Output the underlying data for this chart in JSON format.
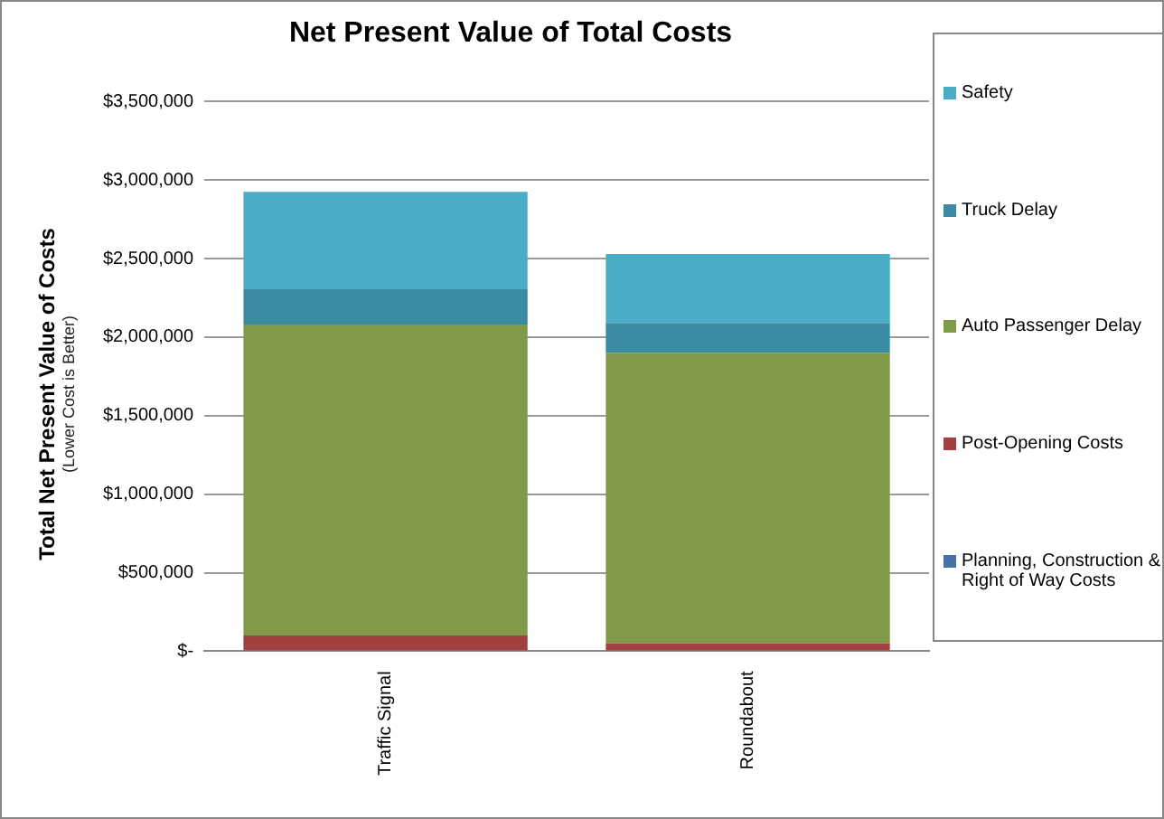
{
  "chart_data": {
    "type": "bar",
    "title": "Net Present Value of Total Costs",
    "ylabel": "Total Net Present Value of Costs",
    "annotations": [
      "(Lower Cost is Better)"
    ],
    "categories": [
      "Traffic Signal",
      "Roundabout"
    ],
    "stacked": true,
    "legend": "right",
    "grid": "y",
    "ylim": [
      0,
      3500000
    ],
    "yticks": [
      {
        "value": 0,
        "label": "$-"
      },
      {
        "value": 500000,
        "label": "$500,000"
      },
      {
        "value": 1000000,
        "label": "$1,000,000"
      },
      {
        "value": 1500000,
        "label": "$1,500,000"
      },
      {
        "value": 2000000,
        "label": "$2,000,000"
      },
      {
        "value": 2500000,
        "label": "$2,500,000"
      },
      {
        "value": 3000000,
        "label": "$3,000,000"
      },
      {
        "value": 3500000,
        "label": "$3,500,000"
      }
    ],
    "series": [
      {
        "name": "Planning, Construction & Right of Way Costs",
        "color": "#4672a8",
        "values": [
          0,
          0
        ]
      },
      {
        "name": "Post-Opening Costs",
        "color": "#a04040",
        "values": [
          100000,
          50000
        ]
      },
      {
        "name": "Auto Passenger Delay",
        "color": "#7f9a48",
        "values": [
          1980000,
          1850000
        ]
      },
      {
        "name": "Truck Delay",
        "color": "#3a8ca3",
        "values": [
          225000,
          190000
        ]
      },
      {
        "name": "Safety",
        "color": "#4bacc6",
        "values": [
          620000,
          440000
        ]
      }
    ]
  }
}
